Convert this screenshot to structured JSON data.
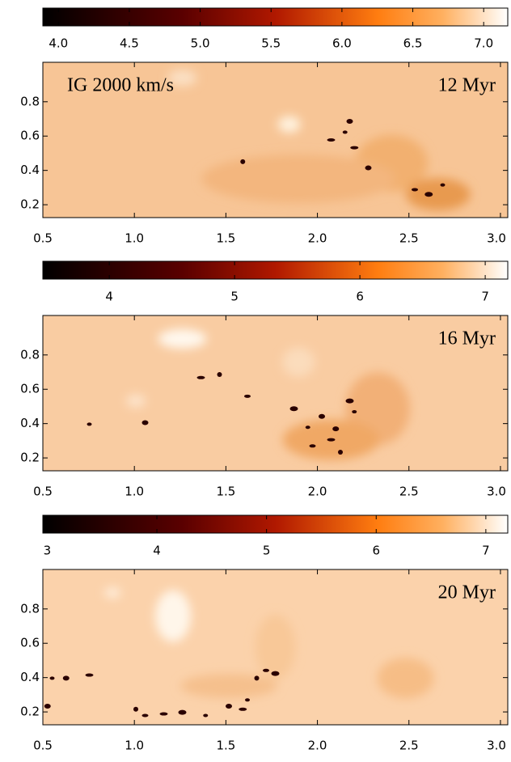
{
  "chart_data": [
    {
      "type": "heatmap",
      "annotations": [
        "IG  2000 km/s",
        "12 Myr"
      ],
      "clim": [
        3.89,
        7.17
      ],
      "cticks": [
        {
          "value": 4,
          "label": "4.0"
        },
        4.5,
        {
          "value": 5,
          "label": "5.0"
        },
        5.5,
        {
          "value": 6,
          "label": "6.0"
        },
        6.5,
        {
          "value": 7,
          "label": "7.0"
        }
      ],
      "xlim": [
        0.5,
        3.04
      ],
      "xticks": [
        0.5,
        {
          "value": 1,
          "label": "1.0"
        },
        1.5,
        {
          "value": 2,
          "label": "2.0"
        },
        2.5,
        {
          "value": 3,
          "label": "3.0"
        }
      ],
      "ylim": [
        0.125,
        1.03
      ],
      "yticks": [
        0.2,
        0.4,
        0.6,
        0.8
      ]
    },
    {
      "type": "heatmap",
      "annotations": [
        "16 Myr"
      ],
      "clim": [
        3.47,
        7.18
      ],
      "cticks": [
        4,
        5,
        6,
        7
      ],
      "xlim": [
        0.5,
        3.04
      ],
      "xticks": [
        0.5,
        {
          "value": 1,
          "label": "1.0"
        },
        1.5,
        {
          "value": 2,
          "label": "2.0"
        },
        2.5,
        {
          "value": 3,
          "label": "3.0"
        }
      ],
      "ylim": [
        0.125,
        1.03
      ],
      "yticks": [
        0.2,
        0.4,
        0.6,
        0.8
      ]
    },
    {
      "type": "heatmap",
      "annotations": [
        "20 Myr"
      ],
      "clim": [
        2.96,
        7.2
      ],
      "cticks": [
        3,
        4,
        5,
        6,
        7
      ],
      "xlim": [
        0.5,
        3.04
      ],
      "xticks": [
        0.5,
        {
          "value": 1,
          "label": "1.0"
        },
        1.5,
        {
          "value": 2,
          "label": "2.0"
        },
        2.5,
        {
          "value": 3,
          "label": "3.0"
        }
      ],
      "ylim": [
        0.125,
        1.03
      ],
      "yticks": [
        0.2,
        0.4,
        0.6,
        0.8
      ]
    }
  ]
}
